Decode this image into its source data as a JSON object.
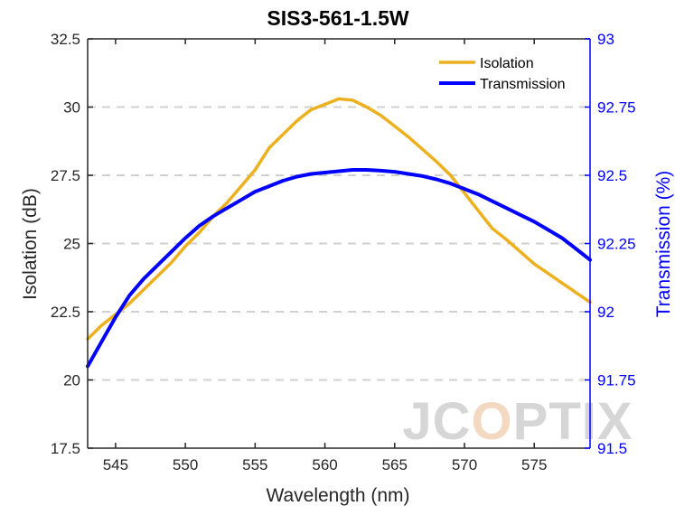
{
  "chart_data": {
    "type": "line",
    "title": "SIS3-561-1.5W",
    "xlabel": "Wavelength (nm)",
    "ylabel_left": "Isolation (dB)",
    "ylabel_right": "Transmission (%)",
    "xlim": [
      543,
      579
    ],
    "ylim_left": [
      17.5,
      32.5
    ],
    "ylim_right": [
      91.5,
      93
    ],
    "x_ticks": [
      "545",
      "550",
      "555",
      "560",
      "565",
      "570",
      "575"
    ],
    "y_ticks_left": [
      "17.5",
      "20",
      "22.5",
      "25",
      "27.5",
      "30",
      "32.5"
    ],
    "y_ticks_right": [
      "91.5",
      "91.75",
      "92",
      "92.25",
      "92.5",
      "92.75",
      "93"
    ],
    "grid": "horizontal dashed",
    "legend_position": "top-right",
    "series": [
      {
        "name": "Isolation",
        "axis": "left",
        "color": "#EDB120",
        "x": [
          543,
          544,
          545,
          546,
          547,
          548,
          549,
          550,
          551,
          552,
          553,
          554,
          555,
          556,
          557,
          558,
          559,
          560,
          561,
          562,
          563,
          564,
          565,
          566,
          567,
          568,
          569,
          570,
          571,
          572,
          573,
          574,
          575,
          576,
          577,
          578,
          579
        ],
        "values": [
          21.5,
          22.0,
          22.4,
          22.8,
          23.3,
          23.8,
          24.3,
          24.9,
          25.4,
          26.0,
          26.5,
          27.1,
          27.7,
          28.5,
          29.0,
          29.5,
          29.9,
          30.1,
          30.3,
          30.25,
          30.0,
          29.7,
          29.3,
          28.9,
          28.45,
          28.0,
          27.5,
          26.85,
          26.2,
          25.55,
          25.15,
          24.7,
          24.25,
          23.9,
          23.55,
          23.2,
          22.85
        ]
      },
      {
        "name": "Transmission",
        "axis": "right",
        "color": "#0000ff",
        "x": [
          543,
          544,
          545,
          546,
          547,
          548,
          549,
          550,
          551,
          552,
          553,
          554,
          555,
          556,
          557,
          558,
          559,
          560,
          561,
          562,
          563,
          564,
          565,
          566,
          567,
          568,
          569,
          570,
          571,
          572,
          573,
          574,
          575,
          576,
          577,
          578,
          579
        ],
        "values": [
          91.8,
          91.89,
          91.98,
          92.06,
          92.12,
          92.17,
          92.22,
          92.27,
          92.315,
          92.35,
          92.38,
          92.41,
          92.44,
          92.46,
          92.48,
          92.495,
          92.505,
          92.51,
          92.515,
          92.52,
          92.52,
          92.517,
          92.513,
          92.505,
          92.497,
          92.485,
          92.47,
          92.45,
          92.43,
          92.405,
          92.38,
          92.355,
          92.33,
          92.3,
          92.27,
          92.23,
          92.19
        ]
      }
    ]
  },
  "watermark": "JCOPTIX"
}
